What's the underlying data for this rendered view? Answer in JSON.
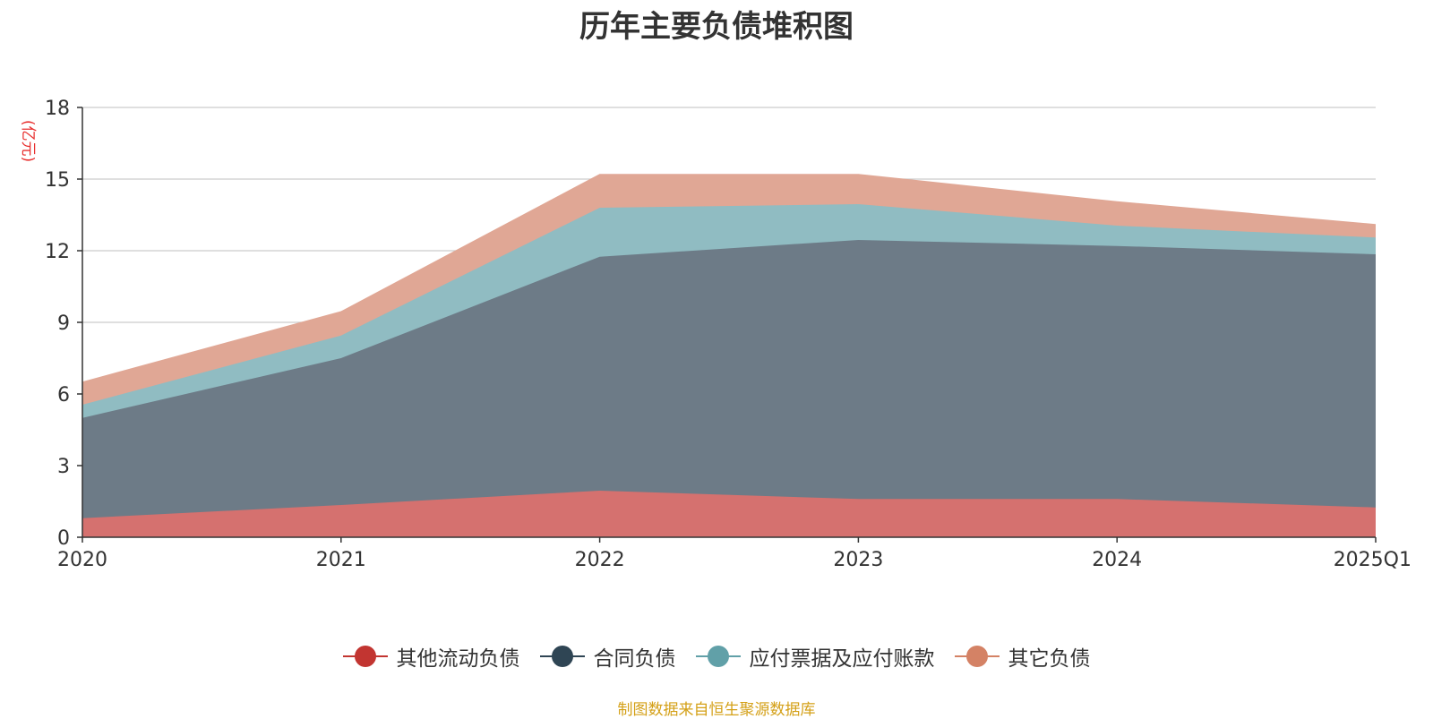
{
  "title": "历年主要负债堆积图",
  "unit": "(亿元)",
  "source": "制图数据来自恒生聚源数据库",
  "chart_data": {
    "type": "area",
    "stacked": true,
    "title": "历年主要负债堆积图",
    "ylabel": "(亿元)",
    "categories": [
      "2020",
      "2021",
      "2022",
      "2023",
      "2024",
      "2025Q1"
    ],
    "ylim": [
      0,
      18
    ],
    "yticks": [
      0,
      3,
      6,
      9,
      12,
      15,
      18
    ],
    "grid": true,
    "legend_position": "bottom",
    "series": [
      {
        "name": "其他流动负债",
        "values": [
          0.8,
          1.35,
          1.95,
          1.6,
          1.6,
          1.25
        ],
        "color": "#c23531",
        "fill": "#d5716f"
      },
      {
        "name": "合同负债",
        "values": [
          4.2,
          6.15,
          9.8,
          10.85,
          10.6,
          10.6
        ],
        "color": "#2f4554",
        "fill": "#6d7b87"
      },
      {
        "name": "应付票据及应付账款",
        "values": [
          0.55,
          0.95,
          2.05,
          1.5,
          0.85,
          0.7
        ],
        "color": "#61a0a8",
        "fill": "#90bcc2"
      },
      {
        "name": "其它负债",
        "values": [
          0.95,
          1.0,
          1.4,
          1.25,
          1.0,
          0.55
        ],
        "color": "#d48265",
        "fill": "#e0a795"
      }
    ]
  }
}
